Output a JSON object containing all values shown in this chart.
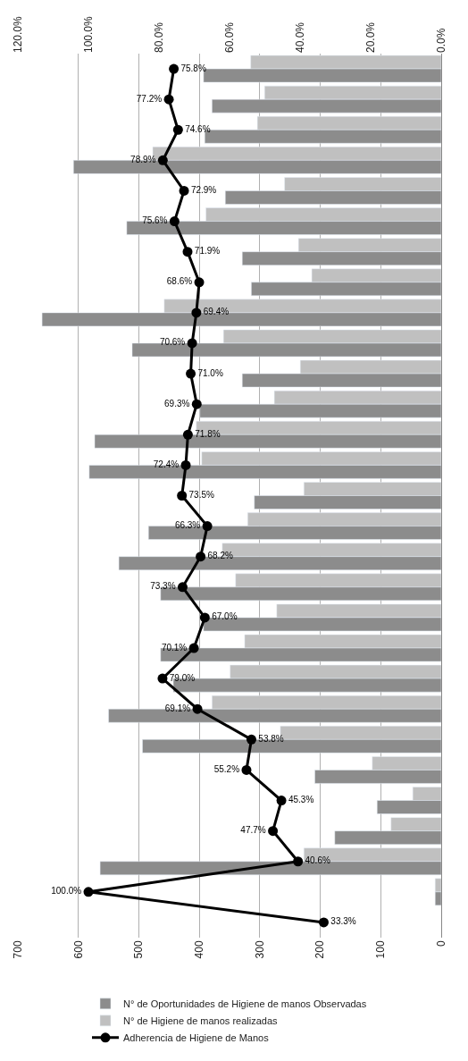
{
  "chart_data": {
    "type": "bar",
    "orientation": "horizontal",
    "categories": [
      null,
      null,
      null,
      null,
      null,
      null,
      null,
      null,
      null,
      null,
      null,
      null,
      null,
      null,
      null,
      null,
      null,
      null,
      null,
      null,
      null,
      null,
      null,
      null,
      null,
      null,
      null,
      null,
      null
    ],
    "series": [
      {
        "name": "N° de Oportunidades de Higiene de manos Observadas",
        "color": "#8c8c8c",
        "values": [
          393,
          379,
          391,
          608,
          357,
          520,
          329,
          314,
          660,
          511,
          329,
          399,
          573,
          582,
          309,
          484,
          533,
          464,
          393,
          464,
          443,
          550,
          494,
          209,
          106,
          176,
          564,
          10,
          null
        ]
      },
      {
        "name": "N° de Higiene de manos realizadas",
        "color": "#c0c0c0",
        "values": [
          315,
          292,
          304,
          477,
          259,
          389,
          236,
          214,
          458,
          360,
          233,
          276,
          405,
          396,
          227,
          320,
          362,
          340,
          272,
          325,
          349,
          379,
          266,
          114,
          47,
          83,
          227,
          10,
          null
        ]
      },
      {
        "name": "Adherencia de Higiene de Manos",
        "type": "line",
        "axis": "x2",
        "color": "#000000",
        "marker": "circle",
        "values": [
          75.8,
          77.2,
          74.6,
          78.9,
          72.9,
          75.6,
          71.9,
          68.6,
          69.4,
          70.6,
          71.0,
          69.3,
          71.8,
          72.4,
          73.5,
          66.3,
          68.2,
          73.3,
          67.0,
          70.1,
          79.0,
          69.1,
          53.8,
          55.2,
          45.3,
          47.7,
          40.6,
          100.0,
          33.3
        ],
        "value_labels": [
          "75.8%",
          "77.2%",
          "74.6%",
          "78.9%",
          "72.9%",
          "75.6%",
          "71.9%",
          "68.6%",
          "69.4%",
          "70.6%",
          "71.0%",
          "69.3%",
          "71.8%",
          "72.4%",
          "73.5%",
          "66.3%",
          "68.2%",
          "73.3%",
          "67.0%",
          "70.1%",
          "79.0%",
          "69.1%",
          "53.8%",
          "55.2%",
          "45.3%",
          "47.7%",
          "40.6%",
          "100.0%",
          "33.3%"
        ]
      }
    ],
    "xlim": [
      700,
      0
    ],
    "xticks": [
      0,
      100,
      200,
      300,
      400,
      500,
      600,
      700
    ],
    "x2lim": [
      120,
      0
    ],
    "x2ticks": [
      {
        "value": 0,
        "label": "0.0%"
      },
      {
        "value": 20,
        "label": "20.0%"
      },
      {
        "value": 40,
        "label": "40.0%"
      },
      {
        "value": 60,
        "label": "60.0%"
      },
      {
        "value": 80,
        "label": "80.0%"
      },
      {
        "value": 100,
        "label": "100.0%"
      },
      {
        "value": 120,
        "label": "120.0%"
      }
    ],
    "grid": "x",
    "legend": "bottom"
  }
}
